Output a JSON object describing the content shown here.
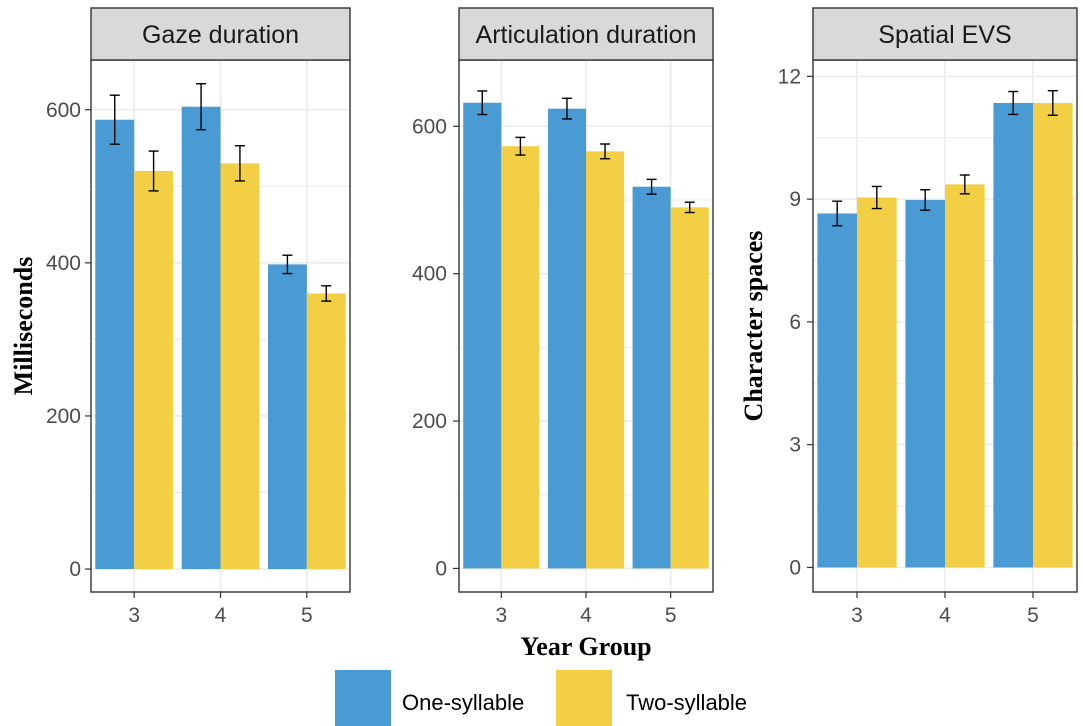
{
  "colors": {
    "one_syllable": "#4A9BD4",
    "two_syllable": "#F2CF45",
    "strip_background": "#D9D9D9",
    "grid": "#EBEBEB",
    "panel_border": "#333333"
  },
  "figure": {
    "x_axis_title": "Year Group",
    "legend": {
      "position": "bottom",
      "items": [
        {
          "label": "One-syllable",
          "color": "#4A9BD4"
        },
        {
          "label": "Two-syllable",
          "color": "#F2CF45"
        }
      ]
    }
  },
  "chart_data": [
    {
      "type": "bar",
      "title": "Gaze duration",
      "xlabel": "Year Group",
      "ylabel": "Milliseconds",
      "categories": [
        "3",
        "4",
        "5"
      ],
      "ylim": [
        -30,
        665
      ],
      "yticks": [
        0,
        200,
        400,
        600
      ],
      "grid": true,
      "series": [
        {
          "name": "One-syllable",
          "values": [
            587,
            604,
            398
          ],
          "error": [
            32,
            30,
            12
          ]
        },
        {
          "name": "Two-syllable",
          "values": [
            520,
            530,
            360
          ],
          "error": [
            26,
            23,
            10
          ]
        }
      ]
    },
    {
      "type": "bar",
      "title": "Articulation duration",
      "xlabel": "Year Group",
      "ylabel": "",
      "categories": [
        "3",
        "4",
        "5"
      ],
      "ylim": [
        -32,
        690
      ],
      "yticks": [
        0,
        200,
        400,
        600
      ],
      "grid": true,
      "series": [
        {
          "name": "One-syllable",
          "values": [
            632,
            624,
            518
          ],
          "error": [
            16,
            14,
            10
          ]
        },
        {
          "name": "Two-syllable",
          "values": [
            573,
            566,
            490
          ],
          "error": [
            12,
            10,
            7
          ]
        }
      ]
    },
    {
      "type": "bar",
      "title": "Spatial EVS",
      "xlabel": "Year Group",
      "ylabel": "Character spaces",
      "categories": [
        "3",
        "4",
        "5"
      ],
      "ylim": [
        -0.6,
        12.4
      ],
      "yticks": [
        0,
        3,
        6,
        9,
        12
      ],
      "grid": true,
      "series": [
        {
          "name": "One-syllable",
          "values": [
            8.65,
            8.98,
            11.35
          ],
          "error": [
            0.3,
            0.25,
            0.28
          ]
        },
        {
          "name": "Two-syllable",
          "values": [
            9.04,
            9.36,
            11.35
          ],
          "error": [
            0.27,
            0.23,
            0.3
          ]
        }
      ]
    }
  ]
}
